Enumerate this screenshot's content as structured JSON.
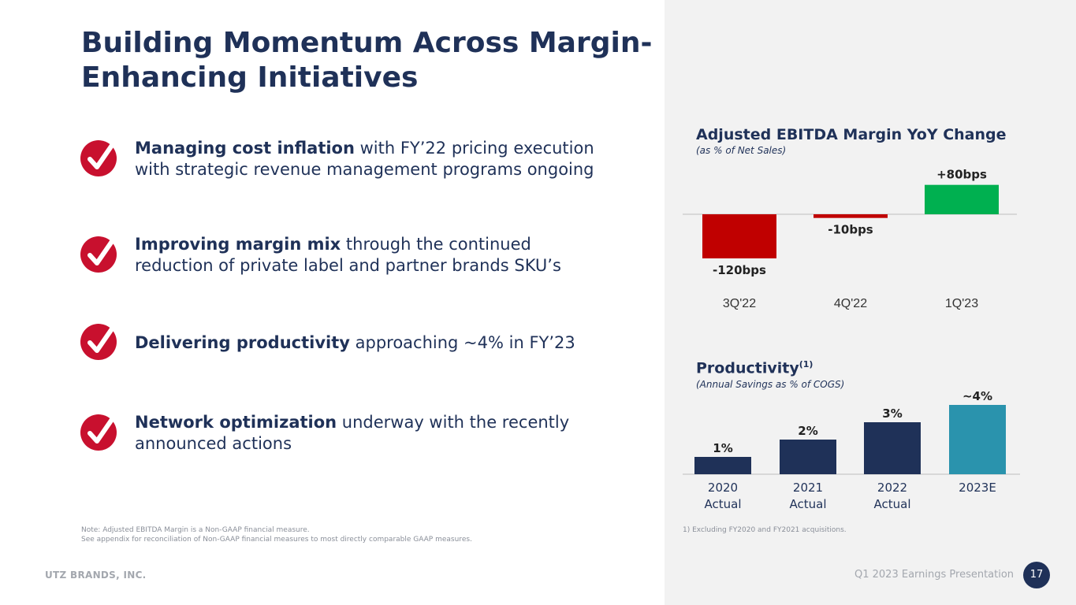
{
  "title_line1": "Building Momentum Across Margin-",
  "title_line2": "Enhancing Initiatives",
  "bullets": [
    {
      "bold": "Managing cost inflation",
      "rest": " with FY’22 pricing execution with strategic revenue management programs ongoing"
    },
    {
      "bold": "Improving margin mix",
      "rest": " through the continued reduction of private label and partner brands SKU’s"
    },
    {
      "bold": "Delivering productivity",
      "rest": " approaching ~4% in FY’23"
    },
    {
      "bold": "Network optimization",
      "rest": " underway with the recently announced actions"
    }
  ],
  "note_line1": "Note:  Adjusted EBITDA Margin is a Non-GAAP financial measure.",
  "note_line2": "See appendix for reconciliation of Non-GAAP financial measures to most directly comparable GAAP measures.",
  "footnote": "1)  Excluding FY2020 and FY2021 acquisitions.",
  "footer_company": "UTZ BRANDS, INC.",
  "footer_presentation": "Q1 2023 Earnings Presentation",
  "page_number": "17",
  "colors": {
    "navy": "#1f3158",
    "red": "#c00000",
    "green": "#00b050",
    "teal": "#2a93ad",
    "panel": "#f2f2f2"
  },
  "chart_data": [
    {
      "type": "bar",
      "title": "Adjusted EBITDA Margin YoY Change",
      "subtitle": "(as % of Net Sales)",
      "categories": [
        "3Q'22",
        "4Q'22",
        "1Q'23"
      ],
      "values": [
        -120,
        -10,
        80
      ],
      "value_labels": [
        "-120bps",
        "-10bps",
        "+80bps"
      ],
      "colors": [
        "#c00000",
        "#c00000",
        "#00b050"
      ],
      "ylim": [
        -130,
        90
      ]
    },
    {
      "type": "bar",
      "title": "Productivity",
      "title_sup": "(1)",
      "subtitle": "(Annual Savings as % of COGS)",
      "categories": [
        [
          "2020",
          "Actual"
        ],
        [
          "2021",
          "Actual"
        ],
        [
          "2022",
          "Actual"
        ],
        [
          "2023E"
        ]
      ],
      "values": [
        1,
        2,
        3,
        4
      ],
      "value_labels": [
        "1%",
        "2%",
        "3%",
        "~4%"
      ],
      "colors": [
        "#1f3158",
        "#1f3158",
        "#1f3158",
        "#2a93ad"
      ],
      "ylim": [
        0,
        4
      ]
    }
  ]
}
